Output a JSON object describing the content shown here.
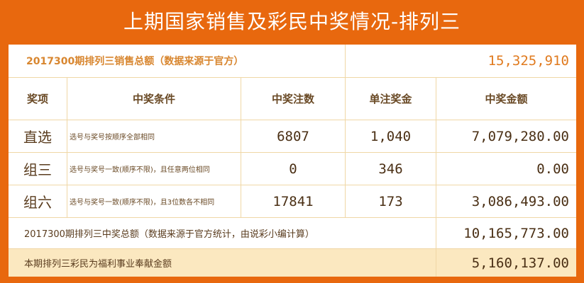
{
  "title": "上期国家销售及彩民中奖情况-排列三",
  "sales": {
    "label": "2017300期排列三销售总额（数据来源于官方）",
    "value": "15,325,910"
  },
  "headers": [
    "奖项",
    "中奖条件",
    "中奖注数",
    "单注奖金",
    "中奖金额"
  ],
  "rows": [
    {
      "prize": "直选",
      "condition": "选号与奖号按顺序全部相同",
      "count": "6807",
      "bonus": "1,040",
      "amount": "7,079,280.00"
    },
    {
      "prize": "组三",
      "condition": "选号与奖号一致(顺序不限)，且任意两位相同",
      "count": "0",
      "bonus": "346",
      "amount": "0.00"
    },
    {
      "prize": "组六",
      "condition": "选号与奖号一致(顺序不限)，且3位数各不相同",
      "count": "17841",
      "bonus": "173",
      "amount": "3,086,493.00"
    }
  ],
  "total": {
    "label": "2017300期排列三中奖总额（数据来源于官方统计，由说彩小编计算）",
    "value": "10,165,773.00"
  },
  "welfare": {
    "label": "本期排列三彩民为福利事业奉献金额",
    "value": "5,160,137.00"
  },
  "colors": {
    "frame": "#e8680e",
    "highlight_row": "#fbe8c0",
    "sales_label": "#d8862f"
  }
}
